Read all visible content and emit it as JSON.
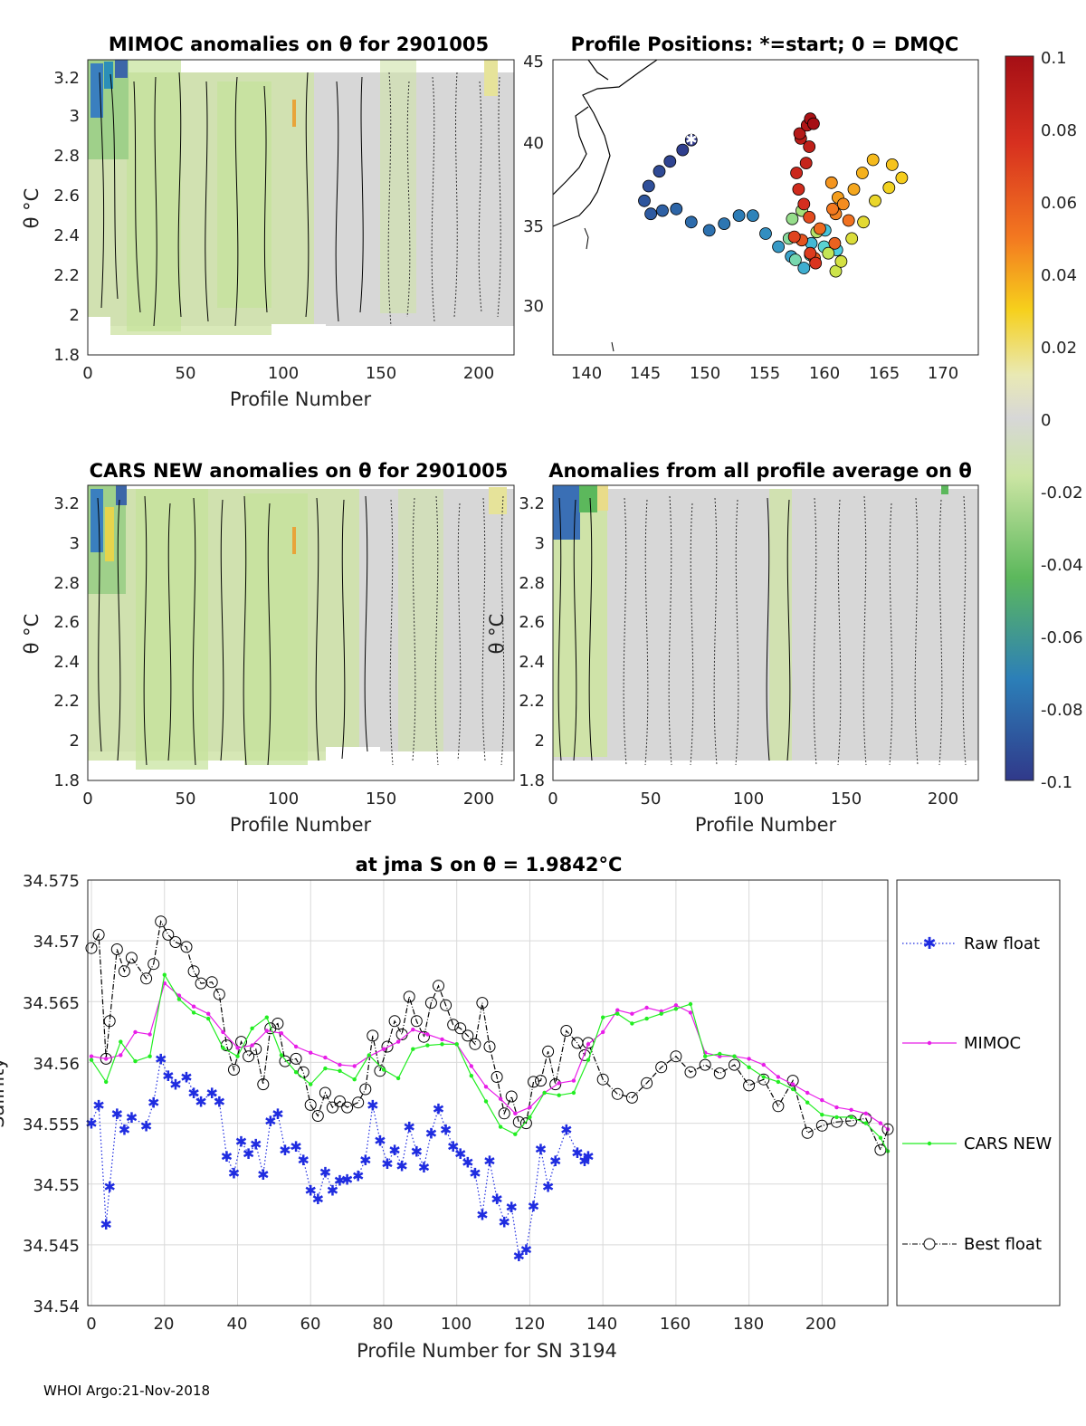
{
  "footer": "WHOI Argo:21-Nov-2018",
  "panels": {
    "mimoc": {
      "title": "MIMOC anomalies on θ  for 2901005",
      "xlabel": "Profile Number",
      "ylabel": "θ °C"
    },
    "positions": {
      "title": "Profile Positions: *=start; 0 = DMQC"
    },
    "cars": {
      "title": "CARS NEW anomalies on θ for 2901005",
      "xlabel": "Profile Number",
      "ylabel": "θ °C"
    },
    "allavg": {
      "title": "Anomalies from all profile average on θ",
      "xlabel": "Profile Number",
      "ylabel": "θ °C"
    },
    "salinity": {
      "title": "at jma S on θ = 1.9842°C",
      "xlabel": "Profile Number for SN 3194",
      "ylabel": "Salinity"
    }
  },
  "colors": {
    "raw": "#1f2ce0",
    "mimoc": "#e81ee8",
    "cars": "#22ee22",
    "best": "#000000",
    "grid": "#d9d9d9",
    "field": "#d7d7d7",
    "green": "#c9e49a"
  },
  "chart_data": [
    {
      "type": "heatmap",
      "name": "mimoc",
      "title": "MIMOC anomalies on θ  for 2901005",
      "xlabel": "Profile Number",
      "ylabel": "θ °C",
      "xlim": [
        0,
        218
      ],
      "ylim": [
        1.8,
        3.28
      ],
      "xticks": [
        "0",
        "50",
        "100",
        "150",
        "200"
      ],
      "yticks": [
        "1.8",
        "2",
        "2.2",
        "2.4",
        "2.6",
        "2.8",
        "3",
        "3.2"
      ]
    },
    {
      "type": "scatter",
      "name": "positions",
      "title": "Profile Positions: *=start; 0 = DMQC",
      "xlim": [
        133,
        173
      ],
      "ylim": [
        27,
        45
      ],
      "xticks": [
        "140",
        "145",
        "150",
        "155",
        "160",
        "165",
        "170"
      ],
      "yticks": [
        "30",
        "35",
        "40",
        "45"
      ],
      "lon": [
        146,
        145.2,
        144,
        143,
        142,
        141.6,
        142.2,
        143.3,
        144.6,
        146,
        147.7,
        149.1,
        150.5,
        151.8,
        153,
        154.2,
        155.4,
        156.6,
        157.3,
        158.6,
        159.7,
        158.5,
        157.2,
        155.8,
        155.2,
        155.5,
        156.4,
        157.8,
        158.9,
        159.6,
        160.1,
        161.1,
        162.2,
        163.3,
        164.6,
        165.8,
        164.9,
        163.1,
        162.1,
        161.3,
        159.8,
        159.2,
        160.3,
        159.6,
        159.3,
        160.8,
        158.1,
        159.5,
        157.6,
        156.4,
        157.1,
        155.7,
        157.2,
        157.7,
        156.6,
        156.1,
        155.9,
        156.8,
        157.1,
        156.3,
        156.2,
        156.9,
        157.2,
        157.5
      ],
      "lat": [
        40.1,
        39.5,
        38.8,
        38.2,
        37.3,
        36.4,
        35.6,
        35.8,
        35.9,
        35.1,
        34.6,
        35,
        35.5,
        35.5,
        34.4,
        33.6,
        33,
        32.3,
        33.8,
        34.6,
        33.4,
        33.6,
        33.1,
        32.8,
        34.1,
        35.3,
        35.8,
        34.5,
        33.2,
        32.1,
        32.7,
        34.1,
        35.1,
        36.4,
        37.2,
        37.8,
        38.6,
        38.9,
        38.1,
        37.1,
        36.6,
        37.5,
        36.2,
        35.6,
        35.9,
        35.2,
        34.7,
        33.8,
        32.9,
        34,
        35.4,
        34.2,
        33.2,
        32.6,
        36.2,
        37.1,
        38.1,
        38.7,
        39.7,
        40.2,
        40.5,
        41,
        41.4,
        41.1
      ],
      "colorbar": {
        "ticks": [
          "0.1",
          "0.08",
          "0.06",
          "0.04",
          "0.02",
          "0",
          "-0.02",
          "-0.04",
          "-0.06",
          "-0.08",
          "-0.1"
        ],
        "range": [
          -0.1,
          0.1
        ]
      }
    },
    {
      "type": "heatmap",
      "name": "cars",
      "title": "CARS NEW anomalies on θ for 2901005",
      "xlabel": "Profile Number",
      "ylabel": "θ °C",
      "xlim": [
        0,
        218
      ],
      "ylim": [
        1.8,
        3.28
      ],
      "xticks": [
        "0",
        "50",
        "100",
        "150",
        "200"
      ],
      "yticks": [
        "1.8",
        "2",
        "2.2",
        "2.4",
        "2.6",
        "2.8",
        "3",
        "3.2"
      ]
    },
    {
      "type": "heatmap",
      "name": "allavg",
      "title": "Anomalies from all profile average on θ",
      "xlabel": "Profile Number",
      "ylabel": "θ °C",
      "xlim": [
        0,
        218
      ],
      "ylim": [
        1.8,
        3.28
      ],
      "xticks": [
        "0",
        "50",
        "100",
        "150",
        "200"
      ],
      "yticks": [
        "1.8",
        "2",
        "2.2",
        "2.4",
        "2.6",
        "2.8",
        "3",
        "3.2"
      ]
    },
    {
      "type": "line",
      "name": "salinity",
      "title": "at jma S on θ = 1.9842°C",
      "xlabel": "Profile Number for SN 3194",
      "ylabel": "Salinity",
      "xlim": [
        -1,
        218
      ],
      "ylim": [
        34.54,
        34.575
      ],
      "xticks": [
        "0",
        "20",
        "40",
        "60",
        "80",
        "100",
        "120",
        "140",
        "160",
        "180",
        "200"
      ],
      "yticks": [
        "34.54",
        "34.545",
        "34.55",
        "34.555",
        "34.56",
        "34.565",
        "34.57",
        "34.575"
      ],
      "grid": true,
      "legend": "right outside",
      "series": [
        {
          "name": "Raw float",
          "style": "dotted-star",
          "x": [
            0,
            2,
            4,
            5,
            7,
            9,
            11,
            15,
            17,
            19,
            21,
            23,
            26,
            28,
            30,
            33,
            35,
            37,
            39,
            41,
            43,
            45,
            47,
            49,
            51,
            53,
            56,
            58,
            60,
            62,
            64,
            66,
            68,
            70,
            73,
            75,
            77,
            79,
            81,
            83,
            85,
            87,
            89,
            91,
            93,
            95,
            97,
            99,
            101,
            103,
            105,
            107,
            109,
            111,
            113,
            115,
            117,
            119,
            121,
            123,
            125,
            127,
            130,
            133,
            135,
            136
          ],
          "y": [
            34.555,
            34.5565,
            34.5467,
            34.5498,
            34.5558,
            34.5545,
            34.5555,
            34.5548,
            34.5567,
            34.5603,
            34.5589,
            34.5582,
            34.5588,
            34.5575,
            34.5568,
            34.5575,
            34.5568,
            34.5523,
            34.5509,
            34.5535,
            34.5525,
            34.5533,
            34.5508,
            34.5552,
            34.5558,
            34.5528,
            34.5531,
            34.552,
            34.5495,
            34.5488,
            34.551,
            34.5495,
            34.5503,
            34.5504,
            34.5507,
            34.552,
            34.5565,
            34.5536,
            34.5517,
            34.5528,
            34.5515,
            34.5547,
            34.5527,
            34.5514,
            34.5542,
            34.5562,
            34.5545,
            34.5531,
            34.5525,
            34.5518,
            34.5509,
            34.5475,
            34.5519,
            34.5488,
            34.5469,
            34.5481,
            34.5441,
            34.5446,
            34.5482,
            34.5529,
            34.5498,
            34.5519,
            34.5545,
            34.5526,
            34.5519,
            34.5523
          ]
        },
        {
          "name": "MIMOC",
          "style": "solid-dot",
          "x": [
            0,
            4,
            8,
            12,
            16,
            20,
            24,
            28,
            32,
            36,
            40,
            44,
            48,
            52,
            56,
            60,
            64,
            68,
            72,
            76,
            80,
            84,
            88,
            92,
            96,
            100,
            104,
            108,
            112,
            116,
            120,
            124,
            128,
            132,
            136,
            140,
            144,
            148,
            152,
            156,
            160,
            164,
            168,
            172,
            176,
            180,
            184,
            188,
            192,
            196,
            200,
            204,
            208,
            212,
            216,
            218
          ],
          "y": [
            34.5605,
            34.5603,
            34.5606,
            34.5625,
            34.5623,
            34.5665,
            34.5655,
            34.5646,
            34.564,
            34.5625,
            34.5612,
            34.5614,
            34.5626,
            34.5624,
            34.5613,
            34.5608,
            34.5604,
            34.5598,
            34.5597,
            34.5605,
            34.5611,
            34.5617,
            34.5627,
            34.5623,
            34.5619,
            34.5615,
            34.5597,
            34.558,
            34.557,
            34.5558,
            34.5563,
            34.5575,
            34.5583,
            34.5585,
            34.5615,
            34.5625,
            34.5643,
            34.564,
            34.5645,
            34.5642,
            34.5647,
            34.5641,
            34.5608,
            34.5605,
            34.5605,
            34.5603,
            34.5598,
            34.5588,
            34.5582,
            34.5575,
            34.5569,
            34.5563,
            34.5561,
            34.5558,
            34.555,
            34.5545
          ]
        },
        {
          "name": "CARS NEW",
          "style": "solid-dot",
          "x": [
            0,
            4,
            8,
            12,
            16,
            20,
            24,
            28,
            32,
            36,
            40,
            44,
            48,
            52,
            56,
            60,
            64,
            68,
            72,
            76,
            80,
            84,
            88,
            92,
            96,
            100,
            104,
            108,
            112,
            116,
            120,
            124,
            128,
            132,
            136,
            140,
            144,
            148,
            152,
            156,
            160,
            164,
            168,
            172,
            176,
            180,
            184,
            188,
            192,
            196,
            200,
            204,
            208,
            212,
            216,
            218
          ],
          "y": [
            34.5602,
            34.5584,
            34.5617,
            34.5601,
            34.5605,
            34.5672,
            34.5652,
            34.5641,
            34.5636,
            34.5612,
            34.5605,
            34.5628,
            34.5637,
            34.5606,
            34.5592,
            34.5582,
            34.5595,
            34.5593,
            34.5586,
            34.5606,
            34.5594,
            34.5587,
            34.5611,
            34.5614,
            34.5615,
            34.5615,
            34.5589,
            34.5568,
            34.5547,
            34.5541,
            34.5555,
            34.5575,
            34.5573,
            34.5575,
            34.5602,
            34.5637,
            34.564,
            34.5632,
            34.5636,
            34.564,
            34.5644,
            34.5648,
            34.5605,
            34.5607,
            34.5605,
            34.5596,
            34.5588,
            34.5584,
            34.5578,
            34.5567,
            34.5557,
            34.5555,
            34.5555,
            34.555,
            34.5538,
            34.5527
          ]
        },
        {
          "name": "Best float",
          "style": "dashdot-circle",
          "x": [
            0,
            2,
            4,
            5,
            7,
            9,
            11,
            15,
            17,
            19,
            21,
            23,
            26,
            28,
            30,
            33,
            35,
            37,
            39,
            41,
            43,
            45,
            47,
            49,
            51,
            53,
            56,
            58,
            60,
            62,
            64,
            66,
            68,
            70,
            73,
            75,
            77,
            79,
            81,
            83,
            85,
            87,
            89,
            91,
            93,
            95,
            97,
            99,
            101,
            103,
            105,
            107,
            109,
            111,
            113,
            115,
            117,
            119,
            121,
            123,
            125,
            127,
            130,
            133,
            135,
            136,
            140,
            144,
            148,
            152,
            156,
            160,
            164,
            168,
            172,
            176,
            180,
            184,
            188,
            192,
            196,
            200,
            204,
            208,
            212,
            216,
            218
          ],
          "y": [
            34.5694,
            34.5705,
            34.5603,
            34.5634,
            34.5693,
            34.5675,
            34.5686,
            34.5669,
            34.5681,
            34.5716,
            34.5705,
            34.5699,
            34.5695,
            34.5675,
            34.5665,
            34.5666,
            34.5656,
            34.5614,
            34.5594,
            34.5617,
            34.5605,
            34.5611,
            34.5582,
            34.5628,
            34.5632,
            34.5601,
            34.5603,
            34.5592,
            34.5565,
            34.5556,
            34.5575,
            34.5563,
            34.5568,
            34.5563,
            34.5567,
            34.5578,
            34.5622,
            34.5593,
            34.5613,
            34.5634,
            34.5623,
            34.5654,
            34.5634,
            34.5621,
            34.5649,
            34.5663,
            34.5647,
            34.5631,
            34.5628,
            34.5622,
            34.5615,
            34.5649,
            34.5613,
            34.5588,
            34.5558,
            34.5572,
            34.5551,
            34.555,
            34.5584,
            34.5585,
            34.5609,
            34.5582,
            34.5626,
            34.5616,
            34.5606,
            34.5616,
            34.5586,
            34.5574,
            34.5571,
            34.5583,
            34.5596,
            34.5605,
            34.5592,
            34.5598,
            34.5591,
            34.5598,
            34.5581,
            34.5586,
            34.5564,
            34.5585,
            34.5542,
            34.5548,
            34.5551,
            34.5552,
            34.5554,
            34.5528,
            34.5545
          ]
        }
      ]
    }
  ]
}
